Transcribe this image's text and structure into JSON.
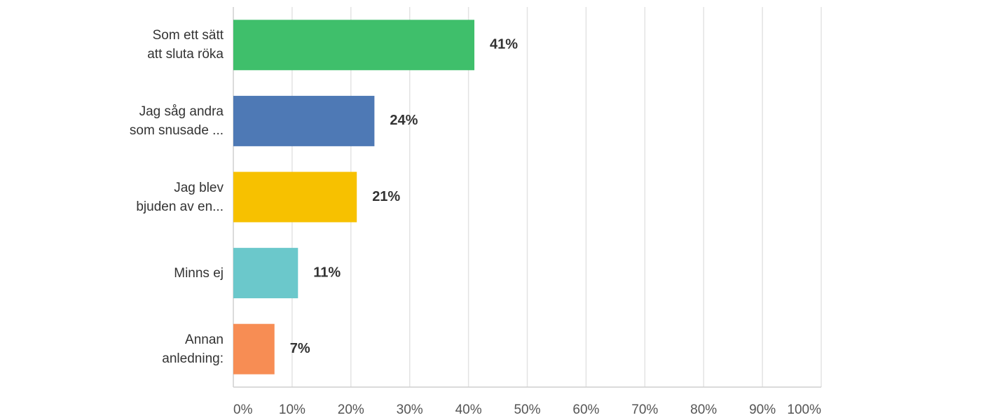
{
  "chart_data": {
    "type": "hbar",
    "categories": [
      "Som ett sätt\natt sluta röka",
      "Jag såg andra\nsom snusade ...",
      "Jag blev\nbjuden av en...",
      "Minns ej",
      "Annan\nanledning:"
    ],
    "values": [
      41,
      24,
      21,
      11,
      7
    ],
    "value_labels": [
      "41%",
      "24%",
      "21%",
      "11%",
      "7%"
    ],
    "colors": [
      "#3fbf6b",
      "#4e79b5",
      "#f7c100",
      "#6bc8cb",
      "#f78d54"
    ],
    "xlim": [
      0,
      100
    ],
    "xticks": [
      {
        "value": 0,
        "label": "0%"
      },
      {
        "value": 10,
        "label": "10%"
      },
      {
        "value": 20,
        "label": "20%"
      },
      {
        "value": 30,
        "label": "30%"
      },
      {
        "value": 40,
        "label": "40%"
      },
      {
        "value": 50,
        "label": "50%"
      },
      {
        "value": 60,
        "label": "60%"
      },
      {
        "value": 70,
        "label": "70%"
      },
      {
        "value": 80,
        "label": "80%"
      },
      {
        "value": 90,
        "label": "90%"
      },
      {
        "value": 100,
        "label": "100%"
      }
    ],
    "grid": true
  }
}
